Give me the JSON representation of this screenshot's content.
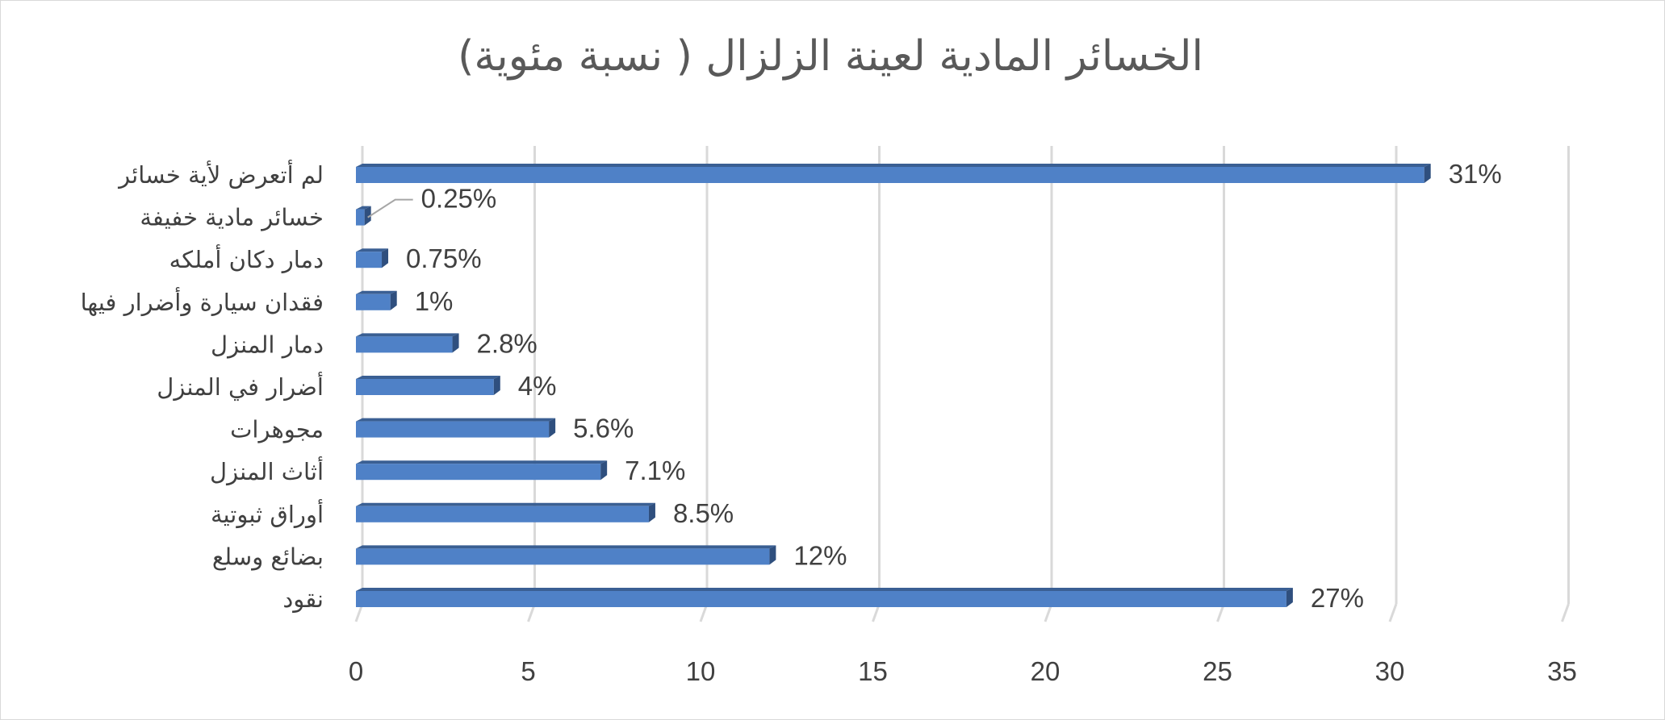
{
  "chart_data": {
    "type": "bar",
    "orientation": "horizontal",
    "title": "الخسائر المادية لعينة الزلزال ( نسبة مئوية)",
    "categories": [
      "نقود",
      "بضائع وسلع",
      "أوراق ثبوتية",
      "أثاث المنزل",
      "مجوهرات",
      "أضرار في المنزل",
      "دمار المنزل",
      "فقدان سيارة وأضرار فيها",
      "دمار دكان أملكه",
      "خسائر مادية خفيفة",
      "لم أتعرض لأية خسائر"
    ],
    "values": [
      27,
      12,
      8.5,
      7.1,
      5.6,
      4,
      2.8,
      1,
      0.75,
      0.25,
      31
    ],
    "data_labels": [
      "27%",
      "12%",
      "8.5%",
      "7.1%",
      "5.6%",
      "4%",
      "2.8%",
      "1%",
      "0.75%",
      "0.25%",
      "31%"
    ],
    "xlim": [
      0,
      35
    ],
    "x_ticks": [
      0,
      5,
      10,
      15,
      20,
      25,
      30,
      35
    ],
    "grid": "vertical",
    "legend": "none",
    "colors": {
      "bar": "#4f81c7",
      "bar_top": "#3a5f93",
      "bar_side": "#2f4f7e",
      "grid": "#d9d9d9",
      "text": "#404040",
      "title": "#595959"
    }
  }
}
